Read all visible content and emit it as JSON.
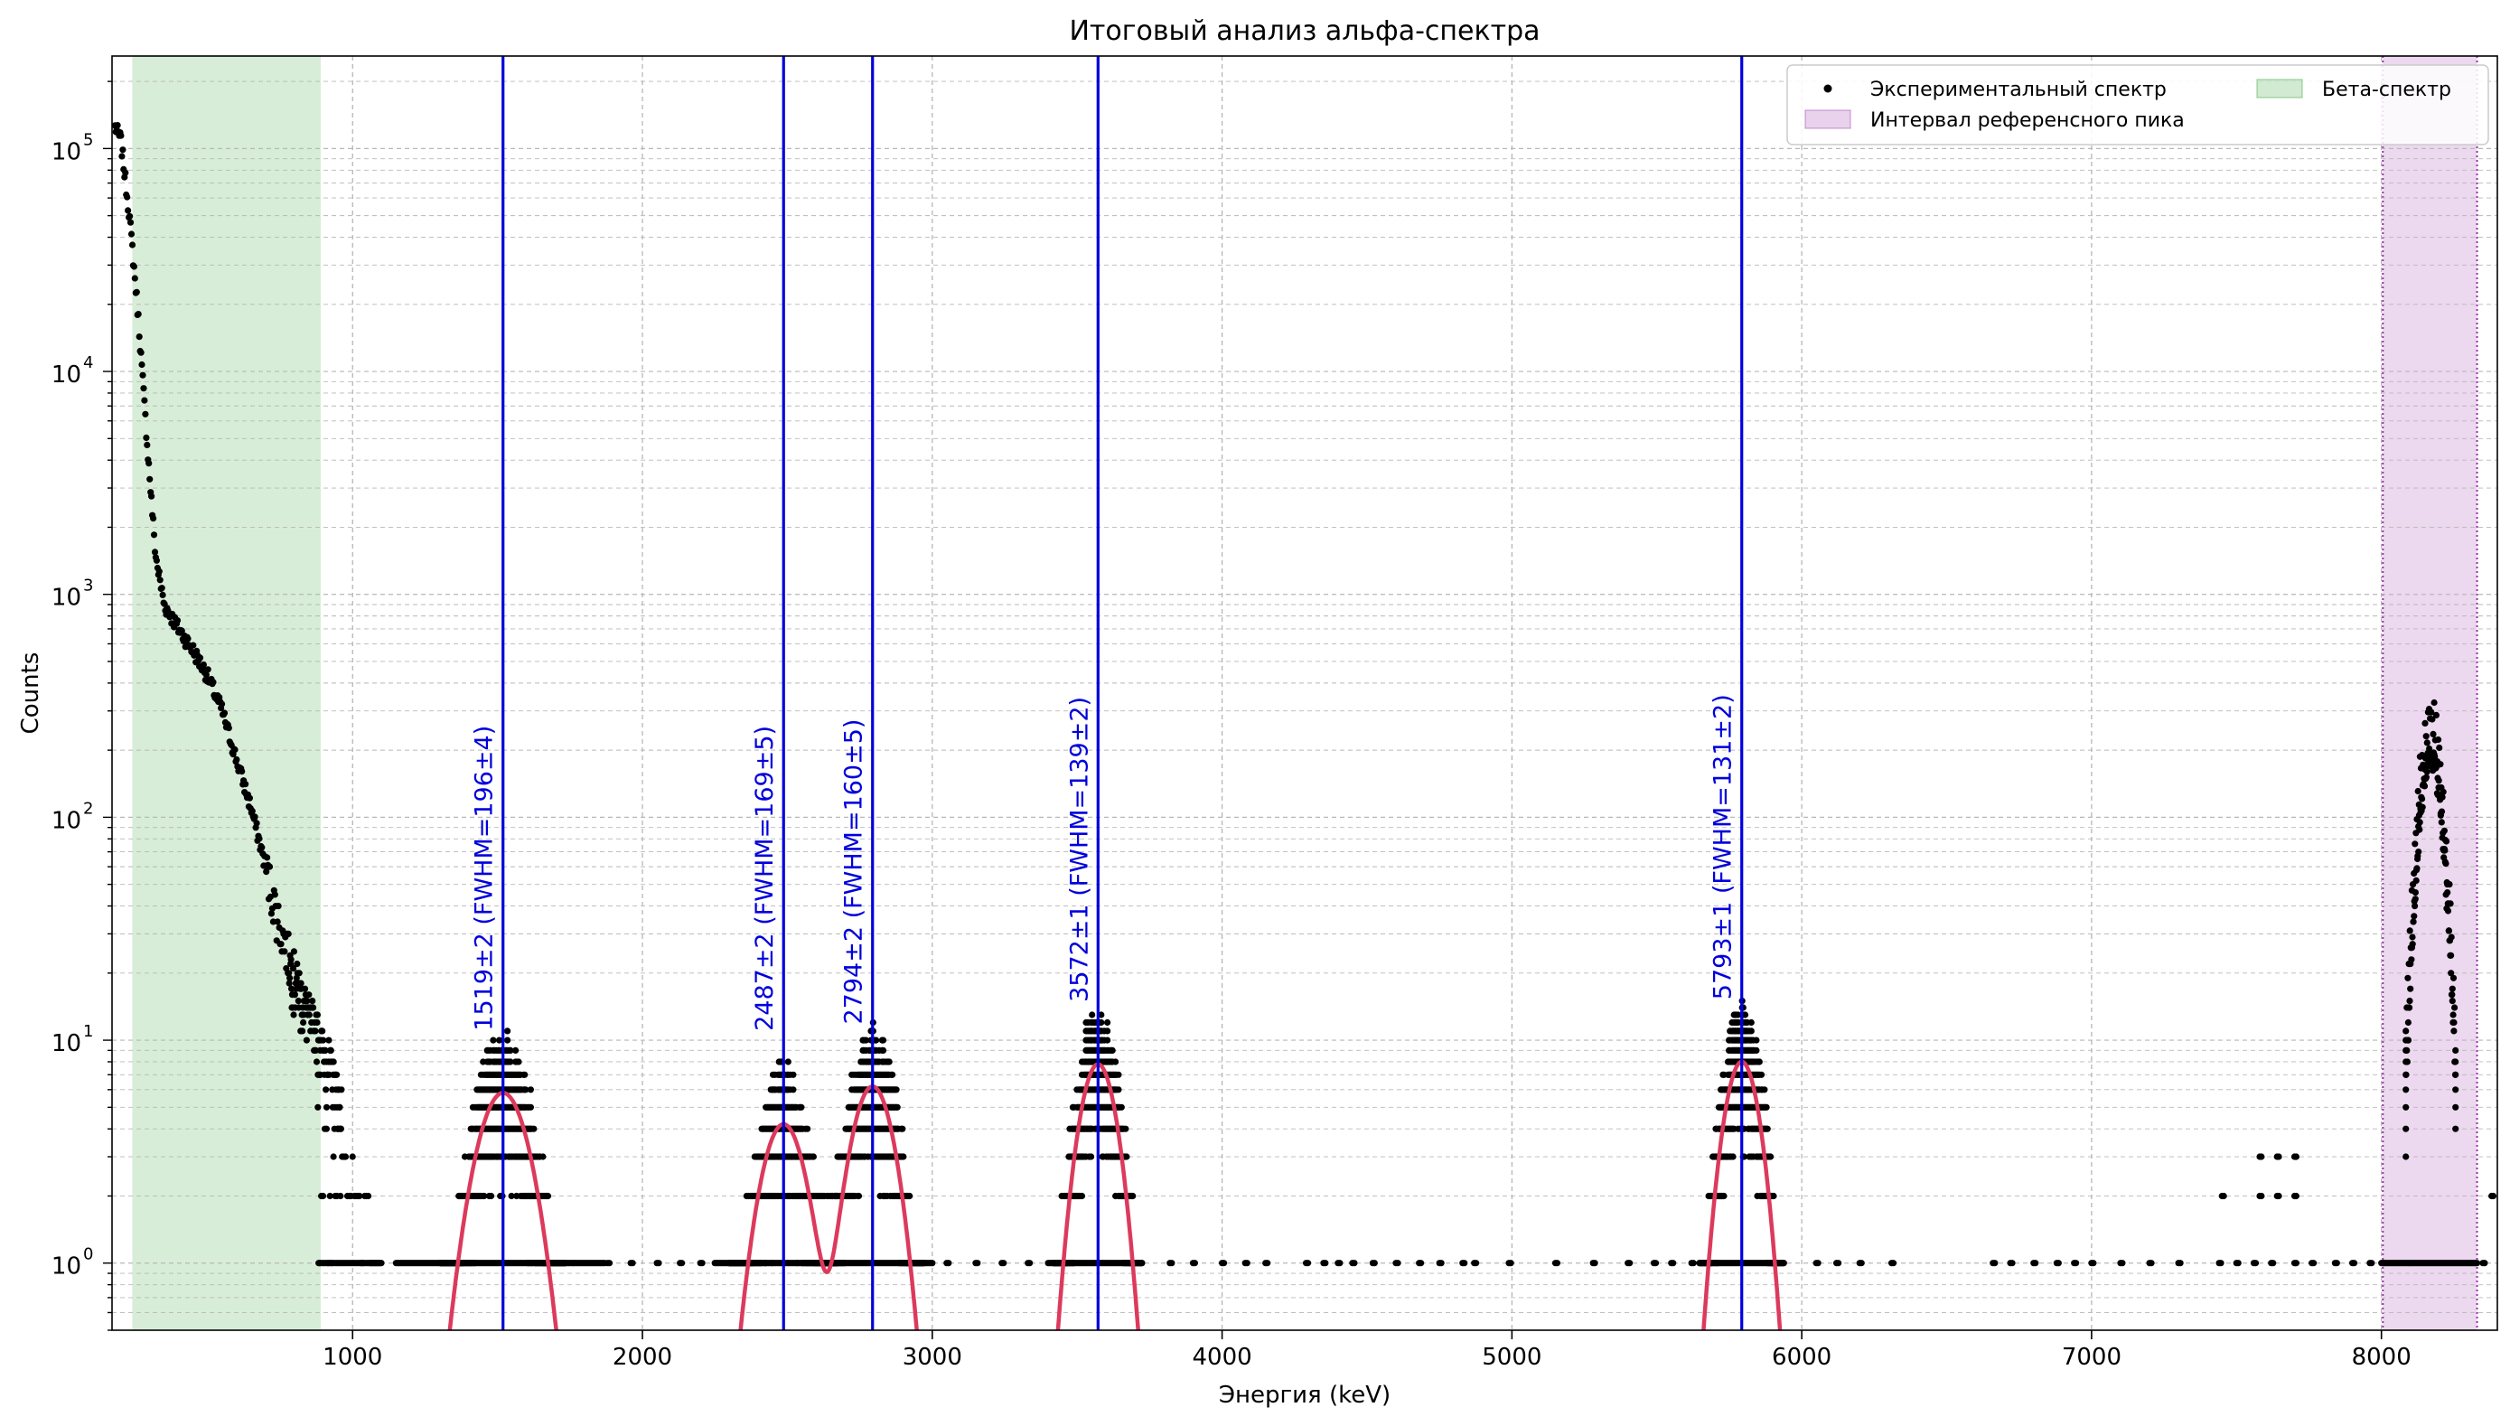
{
  "chart_data": {
    "type": "scatter",
    "title": "Итоговый анализ альфа-спектра",
    "xlabel": "Энергия (keV)",
    "ylabel": "Counts",
    "xlim": [
      170,
      8400
    ],
    "ylim": [
      0.5,
      260000
    ],
    "yscale": "log",
    "grid": true,
    "x_ticks": [
      1000,
      2000,
      3000,
      4000,
      5000,
      6000,
      7000,
      8000
    ],
    "x_tick_labels": [
      "1000",
      "2000",
      "3000",
      "4000",
      "5000",
      "6000",
      "7000",
      "8000"
    ],
    "y_ticks": [
      1,
      10,
      100,
      1000,
      10000,
      100000
    ],
    "y_tick_labels": [
      {
        "base": "10",
        "exp": "0"
      },
      {
        "base": "10",
        "exp": "1"
      },
      {
        "base": "10",
        "exp": "2"
      },
      {
        "base": "10",
        "exp": "3"
      },
      {
        "base": "10",
        "exp": "4"
      },
      {
        "base": "10",
        "exp": "5"
      }
    ],
    "legend": {
      "placement": "top-right",
      "entries": [
        {
          "label": "Экспериментальный спектр",
          "kind": "marker",
          "color": "#000000"
        },
        {
          "label": "Бета-спектр",
          "kind": "patch",
          "color": "#2ca02c"
        },
        {
          "label": "Интервал референсного пика",
          "kind": "patch",
          "color": "#9932a8"
        }
      ]
    },
    "shaded_regions": [
      {
        "name": "Бета-спектр",
        "x_start": 240,
        "x_end": 890,
        "color": "#2ca02c",
        "opacity": 0.19
      },
      {
        "name": "Интервал референсного пика",
        "x_start": 8005,
        "x_end": 8330,
        "color": "#9932a8",
        "opacity": 0.19
      }
    ],
    "peaks": [
      {
        "center": 1519,
        "amplitude": 5.8,
        "sigma": 83,
        "label": "1519±2 (FWHM=196±4)"
      },
      {
        "center": 2487,
        "amplitude": 4.2,
        "sigma": 72,
        "label": "2487±2 (FWHM=169±5)"
      },
      {
        "center": 2794,
        "amplitude": 6.2,
        "sigma": 68,
        "label": "2794±2 (FWHM=160±5)"
      },
      {
        "center": 3572,
        "amplitude": 7.8,
        "sigma": 59,
        "label": "3572±1 (FWHM=139±2)"
      },
      {
        "center": 5793,
        "amplitude": 8.0,
        "sigma": 56,
        "label": "5793±1 (FWHM=131±2)"
      }
    ],
    "reference_peak": {
      "center": 8170,
      "amplitude": 185,
      "sigma": 33
    },
    "beta_curve": [
      [
        180,
        125000
      ],
      [
        200,
        110000
      ],
      [
        230,
        50000
      ],
      [
        260,
        18000
      ],
      [
        290,
        5000
      ],
      [
        320,
        1500
      ],
      [
        350,
        900
      ],
      [
        400,
        700
      ],
      [
        450,
        560
      ],
      [
        500,
        430
      ],
      [
        550,
        300
      ],
      [
        600,
        180
      ],
      [
        650,
        110
      ],
      [
        700,
        60
      ],
      [
        750,
        32
      ],
      [
        800,
        20
      ],
      [
        850,
        13
      ],
      [
        890,
        10
      ],
      [
        920,
        8
      ],
      [
        960,
        5
      ]
    ],
    "background_points": [
      [
        1880,
        1
      ],
      [
        1960,
        1
      ],
      [
        2050,
        1
      ],
      [
        2130,
        1
      ],
      [
        2200,
        1
      ],
      [
        3050,
        1
      ],
      [
        3150,
        1
      ],
      [
        3240,
        1
      ],
      [
        3330,
        1
      ],
      [
        3820,
        1
      ],
      [
        3900,
        1
      ],
      [
        4000,
        1
      ],
      [
        4080,
        1
      ],
      [
        4150,
        1
      ],
      [
        4290,
        1
      ],
      [
        4350,
        1
      ],
      [
        4400,
        1
      ],
      [
        4450,
        1
      ],
      [
        4520,
        1
      ],
      [
        4600,
        1
      ],
      [
        4680,
        1
      ],
      [
        4750,
        1
      ],
      [
        4830,
        1
      ],
      [
        4870,
        1
      ],
      [
        4990,
        1
      ],
      [
        5150,
        1
      ],
      [
        5280,
        1
      ],
      [
        5400,
        1
      ],
      [
        5490,
        1
      ],
      [
        5550,
        1
      ],
      [
        5620,
        1
      ],
      [
        6050,
        1
      ],
      [
        6120,
        1
      ],
      [
        6200,
        1
      ],
      [
        6310,
        1
      ],
      [
        6660,
        1
      ],
      [
        6720,
        1
      ],
      [
        6800,
        1
      ],
      [
        6880,
        1
      ],
      [
        6940,
        1
      ],
      [
        7000,
        1
      ],
      [
        7100,
        1
      ],
      [
        7200,
        1
      ],
      [
        7300,
        1
      ],
      [
        7440,
        1
      ],
      [
        7500,
        1
      ],
      [
        7560,
        1
      ],
      [
        7620,
        1
      ],
      [
        7700,
        1
      ],
      [
        7760,
        1
      ],
      [
        7840,
        1
      ],
      [
        7900,
        1
      ],
      [
        7960,
        1
      ],
      [
        8000,
        1
      ],
      [
        7450,
        2
      ],
      [
        7580,
        2
      ],
      [
        7640,
        2
      ],
      [
        7700,
        2
      ],
      [
        7580,
        3
      ],
      [
        7640,
        3
      ],
      [
        7700,
        3
      ],
      [
        8380,
        2
      ],
      [
        8350,
        1
      ]
    ]
  }
}
